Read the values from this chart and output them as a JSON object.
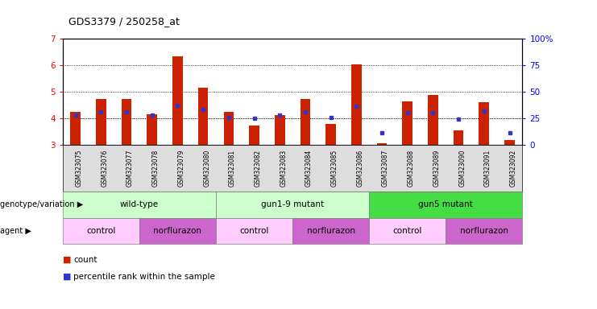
{
  "title": "GDS3379 / 250258_at",
  "samples": [
    "GSM323075",
    "GSM323076",
    "GSM323077",
    "GSM323078",
    "GSM323079",
    "GSM323080",
    "GSM323081",
    "GSM323082",
    "GSM323083",
    "GSM323084",
    "GSM323085",
    "GSM323086",
    "GSM323087",
    "GSM323088",
    "GSM323089",
    "GSM323090",
    "GSM323091",
    "GSM323092"
  ],
  "bar_values": [
    4.25,
    4.73,
    4.73,
    4.15,
    6.33,
    5.15,
    4.25,
    3.73,
    4.13,
    4.73,
    3.8,
    6.03,
    3.08,
    4.65,
    4.88,
    3.57,
    4.6,
    3.2
  ],
  "blue_values": [
    4.12,
    4.25,
    4.25,
    4.13,
    4.5,
    4.35,
    4.03,
    4.0,
    4.12,
    4.25,
    4.03,
    4.45,
    3.47,
    4.23,
    4.22,
    3.97,
    4.27,
    3.47
  ],
  "bar_color": "#cc2200",
  "blue_color": "#3333cc",
  "ylim_left": [
    3.0,
    7.0
  ],
  "ylim_right": [
    0,
    100
  ],
  "yticks_left": [
    3,
    4,
    5,
    6,
    7
  ],
  "yticks_right": [
    0,
    25,
    50,
    75,
    100
  ],
  "grid_values": [
    4.0,
    5.0,
    6.0
  ],
  "genotype_groups": [
    {
      "label": "wild-type",
      "start": 0,
      "end": 5,
      "color": "#ccffcc"
    },
    {
      "label": "gun1-9 mutant",
      "start": 6,
      "end": 11,
      "color": "#ccffcc"
    },
    {
      "label": "gun5 mutant",
      "start": 12,
      "end": 17,
      "color": "#44dd44"
    }
  ],
  "agent_groups": [
    {
      "label": "control",
      "start": 0,
      "end": 2,
      "color": "#ffccff"
    },
    {
      "label": "norflurazon",
      "start": 3,
      "end": 5,
      "color": "#cc66cc"
    },
    {
      "label": "control",
      "start": 6,
      "end": 8,
      "color": "#ffccff"
    },
    {
      "label": "norflurazon",
      "start": 9,
      "end": 11,
      "color": "#cc66cc"
    },
    {
      "label": "control",
      "start": 12,
      "end": 14,
      "color": "#ffccff"
    },
    {
      "label": "norflurazon",
      "start": 15,
      "end": 17,
      "color": "#cc66cc"
    }
  ],
  "legend_count_color": "#cc2200",
  "legend_blue_color": "#3333cc",
  "bg_color": "#ffffff",
  "plot_bg_color": "#ffffff",
  "xtick_bg_color": "#dddddd"
}
